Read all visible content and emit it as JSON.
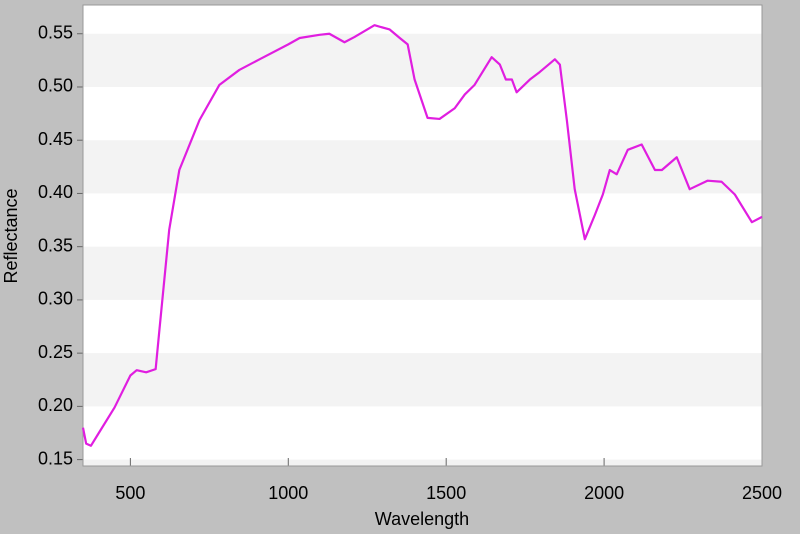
{
  "chart_data": {
    "type": "line",
    "x_label": "Wavelength",
    "y_label": "Reflectance",
    "x": [
      350,
      360,
      375,
      400,
      450,
      500,
      520,
      550,
      580,
      592,
      623,
      655,
      719,
      782,
      845,
      909,
      1000,
      1036,
      1099,
      1130,
      1178,
      1210,
      1273,
      1321,
      1353,
      1378,
      1400,
      1441,
      1479,
      1527,
      1559,
      1590,
      1644,
      1670,
      1689,
      1708,
      1723,
      1765,
      1796,
      1844,
      1860,
      1882,
      1907,
      1939,
      1971,
      1996,
      2018,
      2040,
      2075,
      2119,
      2161,
      2183,
      2230,
      2271,
      2328,
      2372,
      2414,
      2468,
      2500
    ],
    "series": [
      {
        "name": "Reflectance",
        "color": "#e01ee0",
        "values": [
          0.18,
          0.165,
          0.163,
          0.175,
          0.199,
          0.229,
          0.234,
          0.232,
          0.235,
          0.272,
          0.366,
          0.422,
          0.469,
          0.502,
          0.516,
          0.526,
          0.54,
          0.546,
          0.549,
          0.55,
          0.542,
          0.547,
          0.558,
          0.554,
          0.546,
          0.54,
          0.507,
          0.471,
          0.47,
          0.48,
          0.493,
          0.502,
          0.528,
          0.521,
          0.507,
          0.507,
          0.495,
          0.507,
          0.514,
          0.526,
          0.521,
          0.469,
          0.404,
          0.357,
          0.38,
          0.399,
          0.422,
          0.418,
          0.441,
          0.446,
          0.422,
          0.422,
          0.434,
          0.404,
          0.412,
          0.411,
          0.399,
          0.373,
          0.378
        ]
      }
    ],
    "xlim": [
      350,
      2500
    ],
    "xticks": [
      500,
      1000,
      1500,
      2000,
      2500
    ],
    "ylim": [
      0.144,
      0.577
    ],
    "yticks": [
      {
        "value": 0.15,
        "label": "0.15"
      },
      {
        "value": 0.2,
        "label": "0.20"
      },
      {
        "value": 0.25,
        "label": "0.25"
      },
      {
        "value": 0.3,
        "label": "0.30"
      },
      {
        "value": 0.35,
        "label": "0.35"
      },
      {
        "value": 0.4,
        "label": "0.40"
      },
      {
        "value": 0.45,
        "label": "0.45"
      },
      {
        "value": 0.5,
        "label": "0.50"
      },
      {
        "value": 0.55,
        "label": "0.55"
      }
    ],
    "grid": true
  }
}
